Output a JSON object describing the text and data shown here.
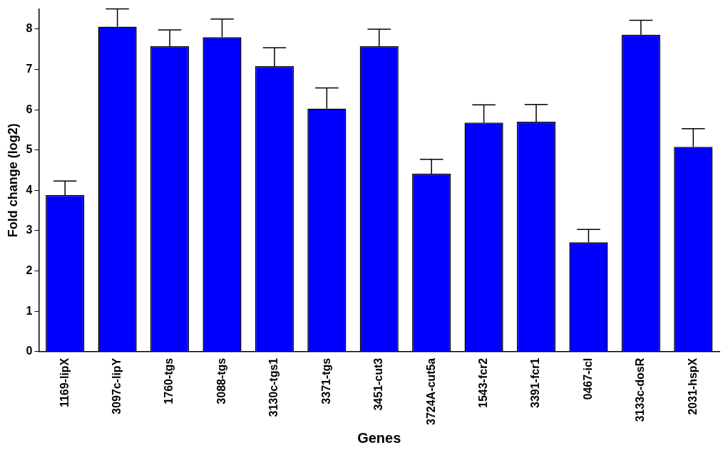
{
  "chart_data": {
    "type": "bar",
    "xlabel": "Genes",
    "ylabel": "Fold change (log2)",
    "categories": [
      "1169-lipX",
      "3097c-lipY",
      "1760-tgs",
      "3088-tgs",
      "3130c-tgs1",
      "3371-tgs",
      "3451-cut3",
      "3724A-cut5a",
      "1543-fcr2",
      "3391-fcr1",
      "0467-icl",
      "3133c-dosR",
      "2031-hspX"
    ],
    "values": [
      3.88,
      8.06,
      7.58,
      7.8,
      7.08,
      6.03,
      7.58,
      4.41,
      5.68,
      5.7,
      2.71,
      7.86,
      5.08
    ],
    "errors": [
      0.35,
      0.44,
      0.4,
      0.45,
      0.46,
      0.51,
      0.42,
      0.36,
      0.44,
      0.43,
      0.32,
      0.36,
      0.45
    ],
    "color": "#0000ff",
    "ylim": [
      0,
      8.5
    ],
    "yticks": [
      0,
      1,
      2,
      3,
      4,
      5,
      6,
      7,
      8
    ],
    "grid": false,
    "legend": false
  }
}
